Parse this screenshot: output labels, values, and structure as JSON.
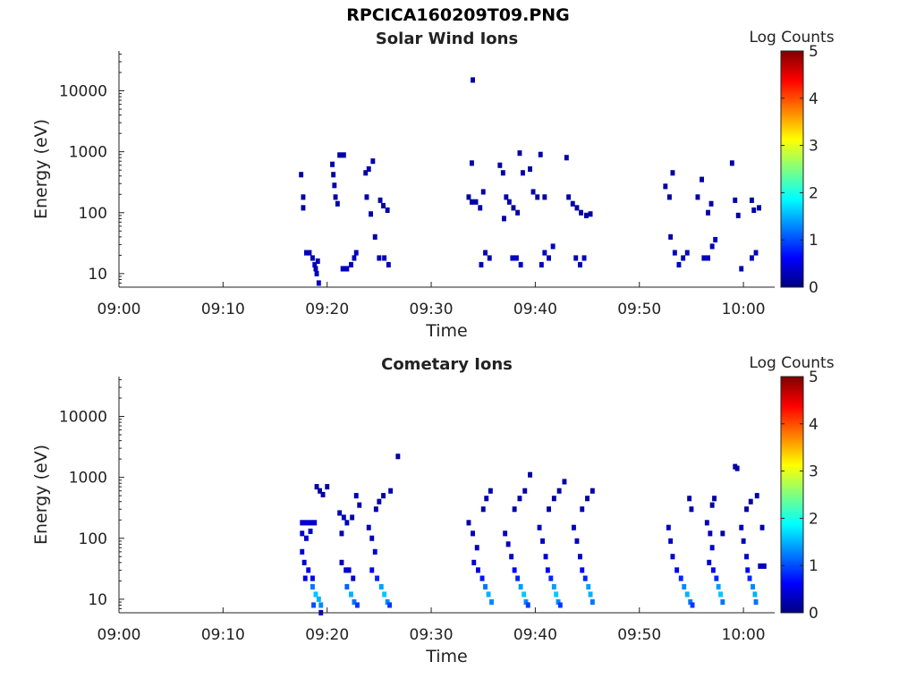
{
  "figure_title": "RPCICA160209T09.PNG",
  "colors": {
    "colormap": [
      "#00007f",
      "#0000ff",
      "#007fff",
      "#00ffff",
      "#7fff7f",
      "#ffff00",
      "#ff7f00",
      "#ff0000",
      "#7f0000"
    ]
  },
  "chart_data": [
    {
      "type": "heatmap",
      "title": "Solar Wind Ions",
      "xlabel": "Time",
      "ylabel": "Energy (eV)",
      "xticks": [
        "09:00",
        "09:10",
        "09:20",
        "09:30",
        "09:40",
        "09:50",
        "10:00"
      ],
      "yticks": [
        "10",
        "100",
        "1000",
        "10000"
      ],
      "xlim": [
        "09:00",
        "10:03"
      ],
      "ylim": [
        6,
        45000
      ],
      "yscale": "log",
      "colorbar": {
        "label": "Log Counts",
        "range": [
          0,
          5
        ],
        "ticks": [
          "0",
          "1",
          "2",
          "3",
          "4",
          "5"
        ]
      },
      "cells": [
        [
          "09:17.5",
          420,
          0.2
        ],
        [
          "09:17.7",
          180,
          0.2
        ],
        [
          "09:17.7",
          120,
          0.2
        ],
        [
          "09:18.0",
          22,
          0.3
        ],
        [
          "09:18.3",
          22,
          0.3
        ],
        [
          "09:18.6",
          18,
          0.3
        ],
        [
          "09:18.8",
          14,
          0.3
        ],
        [
          "09:19.0",
          10,
          0.3
        ],
        [
          "09:19.2",
          7,
          0.3
        ],
        [
          "09:18.9",
          12,
          0.3
        ],
        [
          "09:19.1",
          16,
          0.3
        ],
        [
          "09:20.5",
          620,
          0.2
        ],
        [
          "09:20.6",
          420,
          0.2
        ],
        [
          "09:20.7",
          280,
          0.2
        ],
        [
          "09:20.8",
          180,
          0.2
        ],
        [
          "09:21.0",
          140,
          0.2
        ],
        [
          "09:21.2",
          880,
          0.2
        ],
        [
          "09:21.6",
          880,
          0.2
        ],
        [
          "09:21.5",
          12,
          0.3
        ],
        [
          "09:21.9",
          12,
          0.3
        ],
        [
          "09:22.3",
          14,
          0.3
        ],
        [
          "09:22.6",
          18,
          0.3
        ],
        [
          "09:22.8",
          22,
          0.3
        ],
        [
          "09:23.7",
          450,
          0.2
        ],
        [
          "09:24.0",
          520,
          0.2
        ],
        [
          "09:24.4",
          700,
          0.2
        ],
        [
          "09:23.8",
          180,
          0.2
        ],
        [
          "09:24.2",
          95,
          0.2
        ],
        [
          "09:24.6",
          40,
          0.2
        ],
        [
          "09:25.1",
          160,
          0.2
        ],
        [
          "09:25.4",
          130,
          0.2
        ],
        [
          "09:25.8",
          110,
          0.2
        ],
        [
          "09:25.0",
          18,
          0.3
        ],
        [
          "09:25.5",
          18,
          0.3
        ],
        [
          "09:25.9",
          14,
          0.3
        ],
        [
          "09:34.0",
          15000,
          0.2
        ],
        [
          "09:33.6",
          180,
          0.2
        ],
        [
          "09:33.9",
          150,
          0.2
        ],
        [
          "09:34.3",
          150,
          0.2
        ],
        [
          "09:34.7",
          120,
          0.2
        ],
        [
          "09:33.9",
          650,
          0.2
        ],
        [
          "09:35.0",
          220,
          0.2
        ],
        [
          "09:34.8",
          14,
          0.3
        ],
        [
          "09:35.2",
          22,
          0.3
        ],
        [
          "09:35.6",
          18,
          0.3
        ],
        [
          "09:36.6",
          600,
          0.2
        ],
        [
          "09:36.9",
          450,
          0.2
        ],
        [
          "09:37.2",
          180,
          0.2
        ],
        [
          "09:37.5",
          150,
          0.2
        ],
        [
          "09:37.9",
          120,
          0.2
        ],
        [
          "09:38.3",
          100,
          0.2
        ],
        [
          "09:37.0",
          80,
          0.2
        ],
        [
          "09:38.5",
          950,
          0.2
        ],
        [
          "09:38.8",
          450,
          0.2
        ],
        [
          "09:37.8",
          18,
          0.3
        ],
        [
          "09:38.2",
          18,
          0.3
        ],
        [
          "09:38.6",
          14,
          0.3
        ],
        [
          "09:39.5",
          520,
          0.2
        ],
        [
          "09:39.8",
          220,
          0.2
        ],
        [
          "09:40.2",
          180,
          0.2
        ],
        [
          "09:40.5",
          900,
          0.2
        ],
        [
          "09:40.9",
          180,
          0.2
        ],
        [
          "09:40.6",
          14,
          0.3
        ],
        [
          "09:40.9",
          22,
          0.3
        ],
        [
          "09:41.3",
          18,
          0.3
        ],
        [
          "09:41.7",
          28,
          0.3
        ],
        [
          "09:43.0",
          800,
          0.2
        ],
        [
          "09:43.2",
          180,
          0.2
        ],
        [
          "09:43.6",
          140,
          0.2
        ],
        [
          "09:44.0",
          120,
          0.2
        ],
        [
          "09:44.4",
          100,
          0.2
        ],
        [
          "09:44.9",
          90,
          0.2
        ],
        [
          "09:45.3",
          95,
          0.2
        ],
        [
          "09:43.9",
          18,
          0.3
        ],
        [
          "09:44.3",
          14,
          0.3
        ],
        [
          "09:44.7",
          18,
          0.3
        ],
        [
          "09:52.5",
          270,
          0.2
        ],
        [
          "09:52.9",
          180,
          0.2
        ],
        [
          "09:53.2",
          450,
          0.2
        ],
        [
          "09:53.0",
          40,
          0.2
        ],
        [
          "09:53.4",
          22,
          0.3
        ],
        [
          "09:53.8",
          14,
          0.3
        ],
        [
          "09:54.2",
          18,
          0.3
        ],
        [
          "09:54.6",
          22,
          0.3
        ],
        [
          "09:55.6",
          180,
          0.2
        ],
        [
          "09:56.0",
          350,
          0.2
        ],
        [
          "09:56.6",
          100,
          0.2
        ],
        [
          "09:56.9",
          140,
          0.2
        ],
        [
          "09:56.2",
          18,
          0.3
        ],
        [
          "09:56.6",
          18,
          0.3
        ],
        [
          "09:57.0",
          28,
          0.3
        ],
        [
          "09:57.3",
          36,
          0.3
        ],
        [
          "09:58.9",
          650,
          0.2
        ],
        [
          "09:59.2",
          160,
          0.2
        ],
        [
          "09:59.5",
          90,
          0.2
        ],
        [
          "10:00.8",
          160,
          0.2
        ],
        [
          "10:01.0",
          110,
          0.2
        ],
        [
          "10:01.5",
          120,
          0.2
        ],
        [
          "09:59.8",
          12,
          0.3
        ],
        [
          "10:00.8",
          18,
          0.3
        ],
        [
          "10:01.2",
          22,
          0.3
        ]
      ]
    },
    {
      "type": "heatmap",
      "title": "Cometary Ions",
      "xlabel": "Time",
      "ylabel": "Energy (eV)",
      "xticks": [
        "09:00",
        "09:10",
        "09:20",
        "09:30",
        "09:40",
        "09:50",
        "10:00"
      ],
      "yticks": [
        "10",
        "100",
        "1000",
        "10000"
      ],
      "xlim": [
        "09:00",
        "10:03"
      ],
      "ylim": [
        6,
        45000
      ],
      "yscale": "log",
      "colorbar": {
        "label": "Log Counts",
        "range": [
          0,
          5
        ],
        "ticks": [
          "0",
          "1",
          "2",
          "3",
          "4",
          "5"
        ]
      },
      "cells": [
        [
          "09:17.6",
          180,
          0.4
        ],
        [
          "09:18.0",
          180,
          0.4
        ],
        [
          "09:18.4",
          180,
          0.4
        ],
        [
          "09:18.8",
          180,
          0.4
        ],
        [
          "09:17.6",
          120,
          0.4
        ],
        [
          "09:18.0",
          100,
          0.4
        ],
        [
          "09:18.4",
          130,
          0.4
        ],
        [
          "09:17.6",
          60,
          0.4
        ],
        [
          "09:17.8",
          40,
          0.4
        ],
        [
          "09:18.2",
          30,
          0.5
        ],
        [
          "09:18.6",
          22,
          0.5
        ],
        [
          "09:17.9",
          22,
          0.5
        ],
        [
          "09:18.6",
          16,
          1.2
        ],
        [
          "09:18.9",
          12,
          1.6
        ],
        [
          "09:19.2",
          10,
          1.5
        ],
        [
          "09:19.4",
          8,
          1.3
        ],
        [
          "09:18.7",
          8,
          1.0
        ],
        [
          "09:19.4",
          6,
          0.4
        ],
        [
          "09:19.0",
          700,
          0.2
        ],
        [
          "09:19.3",
          600,
          0.2
        ],
        [
          "09:19.6",
          520,
          0.2
        ],
        [
          "09:20.0",
          700,
          0.2
        ],
        [
          "09:21.2",
          260,
          0.3
        ],
        [
          "09:21.6",
          220,
          0.3
        ],
        [
          "09:21.9",
          180,
          0.3
        ],
        [
          "09:21.4",
          120,
          0.3
        ],
        [
          "09:21.4",
          40,
          0.3
        ],
        [
          "09:21.8",
          30,
          0.4
        ],
        [
          "09:22.1",
          30,
          0.4
        ],
        [
          "09:22.5",
          22,
          0.4
        ],
        [
          "09:21.9",
          16,
          1.1
        ],
        [
          "09:22.3",
          12,
          1.5
        ],
        [
          "09:22.6",
          9,
          1.2
        ],
        [
          "09:22.9",
          8,
          0.9
        ],
        [
          "09:22.8",
          500,
          0.2
        ],
        [
          "09:23.1",
          350,
          0.2
        ],
        [
          "09:22.4",
          220,
          0.2
        ],
        [
          "09:24.0",
          150,
          0.3
        ],
        [
          "09:24.3",
          100,
          0.3
        ],
        [
          "09:24.6",
          60,
          0.4
        ],
        [
          "09:24.3",
          30,
          0.6
        ],
        [
          "09:24.8",
          22,
          0.8
        ],
        [
          "09:25.2",
          16,
          1.4
        ],
        [
          "09:25.5",
          12,
          1.6
        ],
        [
          "09:25.8",
          9,
          1.3
        ],
        [
          "09:26.0",
          8,
          0.9
        ],
        [
          "09:24.7",
          300,
          0.2
        ],
        [
          "09:25.0",
          400,
          0.2
        ],
        [
          "09:25.4",
          500,
          0.2
        ],
        [
          "09:26.1",
          600,
          0.2
        ],
        [
          "09:26.8",
          2200,
          0.2
        ],
        [
          "09:33.6",
          180,
          0.2
        ],
        [
          "09:34.0",
          120,
          0.3
        ],
        [
          "09:34.4",
          70,
          0.3
        ],
        [
          "09:34.1",
          40,
          0.4
        ],
        [
          "09:34.5",
          30,
          0.5
        ],
        [
          "09:34.9",
          22,
          0.7
        ],
        [
          "09:35.2",
          16,
          1.2
        ],
        [
          "09:35.5",
          12,
          1.5
        ],
        [
          "09:35.8",
          9,
          1.3
        ],
        [
          "09:35.0",
          300,
          0.2
        ],
        [
          "09:35.3",
          450,
          0.2
        ],
        [
          "09:35.7",
          600,
          0.2
        ],
        [
          "09:37.1",
          120,
          0.3
        ],
        [
          "09:37.4",
          80,
          0.3
        ],
        [
          "09:37.7",
          50,
          0.4
        ],
        [
          "09:38.0",
          30,
          0.6
        ],
        [
          "09:38.3",
          22,
          0.8
        ],
        [
          "09:38.6",
          16,
          1.4
        ],
        [
          "09:38.9",
          12,
          1.6
        ],
        [
          "09:39.1",
          9,
          1.3
        ],
        [
          "09:39.3",
          8,
          0.9
        ],
        [
          "09:38.0",
          300,
          0.2
        ],
        [
          "09:38.5",
          450,
          0.2
        ],
        [
          "09:39.0",
          600,
          0.2
        ],
        [
          "09:39.5",
          1100,
          0.2
        ],
        [
          "09:40.4",
          150,
          0.3
        ],
        [
          "09:40.7",
          90,
          0.3
        ],
        [
          "09:41.0",
          50,
          0.4
        ],
        [
          "09:41.2",
          30,
          0.6
        ],
        [
          "09:41.5",
          22,
          0.8
        ],
        [
          "09:41.8",
          16,
          1.4
        ],
        [
          "09:42.0",
          12,
          1.6
        ],
        [
          "09:42.2",
          9,
          1.3
        ],
        [
          "09:42.4",
          8,
          0.9
        ],
        [
          "09:41.3",
          300,
          0.2
        ],
        [
          "09:41.8",
          450,
          0.2
        ],
        [
          "09:42.3",
          600,
          0.2
        ],
        [
          "09:42.8",
          850,
          0.2
        ],
        [
          "09:43.7",
          150,
          0.3
        ],
        [
          "09:44.0",
          90,
          0.3
        ],
        [
          "09:44.3",
          50,
          0.4
        ],
        [
          "09:44.5",
          30,
          0.6
        ],
        [
          "09:44.8",
          22,
          0.8
        ],
        [
          "09:45.1",
          16,
          1.4
        ],
        [
          "09:45.3",
          12,
          1.5
        ],
        [
          "09:45.5",
          9,
          1.2
        ],
        [
          "09:44.5",
          300,
          0.2
        ],
        [
          "09:45.0",
          450,
          0.2
        ],
        [
          "09:45.5",
          600,
          0.2
        ],
        [
          "09:52.8",
          150,
          0.3
        ],
        [
          "09:53.0",
          90,
          0.3
        ],
        [
          "09:53.2",
          50,
          0.4
        ],
        [
          "09:53.6",
          30,
          0.6
        ],
        [
          "09:54.0",
          22,
          0.8
        ],
        [
          "09:54.3",
          16,
          1.3
        ],
        [
          "09:54.6",
          12,
          1.5
        ],
        [
          "09:54.9",
          9,
          1.2
        ],
        [
          "09:55.1",
          8,
          0.9
        ],
        [
          "09:54.8",
          450,
          0.2
        ],
        [
          "09:55.0",
          300,
          0.2
        ],
        [
          "09:56.5",
          180,
          0.3
        ],
        [
          "09:56.8",
          120,
          0.3
        ],
        [
          "09:57.0",
          70,
          0.4
        ],
        [
          "09:56.7",
          40,
          0.4
        ],
        [
          "09:57.1",
          30,
          0.6
        ],
        [
          "09:57.4",
          22,
          0.8
        ],
        [
          "09:57.6",
          16,
          1.4
        ],
        [
          "09:57.8",
          12,
          1.6
        ],
        [
          "09:58.0",
          9,
          1.2
        ],
        [
          "09:57.0",
          350,
          0.2
        ],
        [
          "09:57.2",
          450,
          0.2
        ],
        [
          "09:58.0",
          120,
          0.2
        ],
        [
          "09:59.2",
          1500,
          0.2
        ],
        [
          "09:59.4",
          1400,
          0.2
        ],
        [
          "09:59.8",
          150,
          0.3
        ],
        [
          "10:00.0",
          90,
          0.3
        ],
        [
          "10:00.3",
          50,
          0.4
        ],
        [
          "10:00.4",
          30,
          0.6
        ],
        [
          "10:00.6",
          22,
          0.8
        ],
        [
          "10:00.9",
          16,
          1.3
        ],
        [
          "10:01.1",
          12,
          1.5
        ],
        [
          "10:01.2",
          9,
          1.2
        ],
        [
          "10:00.3",
          300,
          0.2
        ],
        [
          "10:00.7",
          400,
          0.2
        ],
        [
          "10:01.3",
          500,
          0.2
        ],
        [
          "10:01.8",
          150,
          0.2
        ],
        [
          "10:01.6",
          35,
          0.3
        ],
        [
          "10:02.0",
          35,
          0.3
        ]
      ]
    }
  ]
}
